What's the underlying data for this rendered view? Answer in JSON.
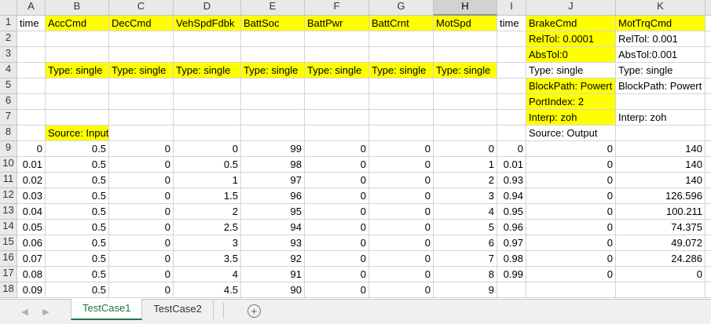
{
  "columns": [
    "A",
    "B",
    "C",
    "D",
    "E",
    "F",
    "G",
    "H",
    "I",
    "J",
    "K"
  ],
  "selected_column": "H",
  "rows": [
    [
      "time",
      "AccCmd",
      "DecCmd",
      "VehSpdFdbk",
      "BattSoc",
      "BattPwr",
      "BattCrnt",
      "MotSpd",
      "time",
      "BrakeCmd",
      "MotTrqCmd"
    ],
    [
      "",
      "",
      "",
      "",
      "",
      "",
      "",
      "",
      "",
      "RelTol: 0.0001",
      "RelTol: 0.001"
    ],
    [
      "",
      "",
      "",
      "",
      "",
      "",
      "",
      "",
      "",
      "AbsTol:0",
      "AbsTol:0.001"
    ],
    [
      "",
      "Type: single",
      "Type: single",
      "Type: single",
      "Type: single",
      "Type: single",
      "Type: single",
      "Type: single",
      "",
      "Type: single",
      "Type: single"
    ],
    [
      "",
      "",
      "",
      "",
      "",
      "",
      "",
      "",
      "",
      "BlockPath: Powert",
      "BlockPath: Powert"
    ],
    [
      "",
      "",
      "",
      "",
      "",
      "",
      "",
      "",
      "",
      "PortIndex: 2",
      ""
    ],
    [
      "",
      "",
      "",
      "",
      "",
      "",
      "",
      "",
      "",
      "Interp: zoh",
      "Interp: zoh"
    ],
    [
      "",
      "Source: Input",
      "",
      "",
      "",
      "",
      "",
      "",
      "",
      "Source: Output",
      ""
    ],
    [
      "0",
      "0.5",
      "0",
      "0",
      "99",
      "0",
      "0",
      "0",
      "0",
      "0",
      "140"
    ],
    [
      "0.01",
      "0.5",
      "0",
      "0.5",
      "98",
      "0",
      "0",
      "1",
      "0.01",
      "0",
      "140"
    ],
    [
      "0.02",
      "0.5",
      "0",
      "1",
      "97",
      "0",
      "0",
      "2",
      "0.93",
      "0",
      "140"
    ],
    [
      "0.03",
      "0.5",
      "0",
      "1.5",
      "96",
      "0",
      "0",
      "3",
      "0.94",
      "0",
      "126.596"
    ],
    [
      "0.04",
      "0.5",
      "0",
      "2",
      "95",
      "0",
      "0",
      "4",
      "0.95",
      "0",
      "100.211"
    ],
    [
      "0.05",
      "0.5",
      "0",
      "2.5",
      "94",
      "0",
      "0",
      "5",
      "0.96",
      "0",
      "74.375"
    ],
    [
      "0.06",
      "0.5",
      "0",
      "3",
      "93",
      "0",
      "0",
      "6",
      "0.97",
      "0",
      "49.072"
    ],
    [
      "0.07",
      "0.5",
      "0",
      "3.5",
      "92",
      "0",
      "0",
      "7",
      "0.98",
      "0",
      "24.286"
    ],
    [
      "0.08",
      "0.5",
      "0",
      "4",
      "91",
      "0",
      "0",
      "8",
      "0.99",
      "0",
      "0"
    ],
    [
      "0.09",
      "0.5",
      "0",
      "4.5",
      "90",
      "0",
      "0",
      "9",
      "",
      "",
      ""
    ]
  ],
  "highlight_color": "#ffff00",
  "highlighted_cells": [
    "B1",
    "C1",
    "D1",
    "E1",
    "F1",
    "G1",
    "H1",
    "J1",
    "K1",
    "J2",
    "J3",
    "B4",
    "C4",
    "D4",
    "E4",
    "F4",
    "G4",
    "H4",
    "J5",
    "J6",
    "J7",
    "B8"
  ],
  "tabs": {
    "prev_icon": "chevron-left-icon",
    "next_icon": "chevron-right-icon",
    "sheets": [
      {
        "label": "TestCase1",
        "active": true
      },
      {
        "label": "TestCase2",
        "active": false
      }
    ],
    "add_symbol": "+",
    "active_color": "#217346"
  }
}
